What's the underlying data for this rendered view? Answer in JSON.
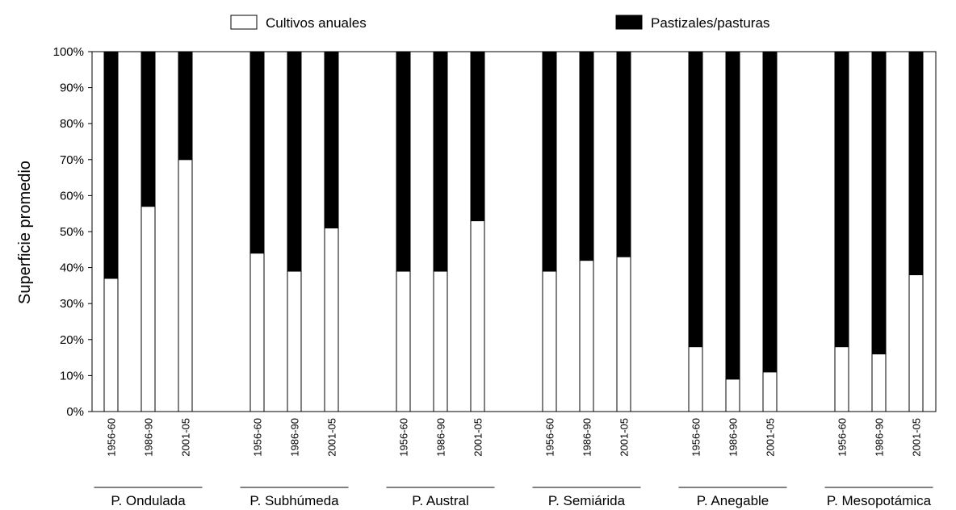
{
  "chart_data": {
    "type": "bar",
    "stacked": true,
    "percent_scale": true,
    "ylabel": "Superficie promedio",
    "xlabel": "",
    "ylim": [
      0,
      100
    ],
    "yticks": [
      "0%",
      "10%",
      "20%",
      "30%",
      "40%",
      "50%",
      "60%",
      "70%",
      "80%",
      "90%",
      "100%"
    ],
    "legend": {
      "placement": "top",
      "items": [
        {
          "label": "Cultivos anuales",
          "color": "#ffffff"
        },
        {
          "label": "Pastizales/pasturas",
          "color": "#000000"
        }
      ]
    },
    "periods": [
      "1956-60",
      "1986-90",
      "2001-05"
    ],
    "groups": [
      {
        "name": "P. Ondulada",
        "cultivos": [
          37,
          57,
          70
        ]
      },
      {
        "name": "P. Subhúmeda",
        "cultivos": [
          44,
          39,
          51
        ]
      },
      {
        "name": "P. Austral",
        "cultivos": [
          39,
          39,
          53
        ]
      },
      {
        "name": "P. Semiárida",
        "cultivos": [
          39,
          42,
          43
        ]
      },
      {
        "name": "P. Anegable",
        "cultivos": [
          18,
          9,
          11
        ]
      },
      {
        "name": "P. Mesopotámica",
        "cultivos": [
          18,
          16,
          38
        ]
      }
    ],
    "series": [
      {
        "name": "Cultivos anuales",
        "values": [
          37,
          57,
          70,
          44,
          39,
          51,
          39,
          39,
          53,
          39,
          42,
          43,
          18,
          9,
          11,
          18,
          16,
          38
        ]
      },
      {
        "name": "Pastizales/pasturas",
        "values": [
          63,
          43,
          30,
          56,
          61,
          49,
          61,
          61,
          47,
          61,
          58,
          57,
          82,
          91,
          89,
          82,
          84,
          62
        ]
      }
    ]
  }
}
